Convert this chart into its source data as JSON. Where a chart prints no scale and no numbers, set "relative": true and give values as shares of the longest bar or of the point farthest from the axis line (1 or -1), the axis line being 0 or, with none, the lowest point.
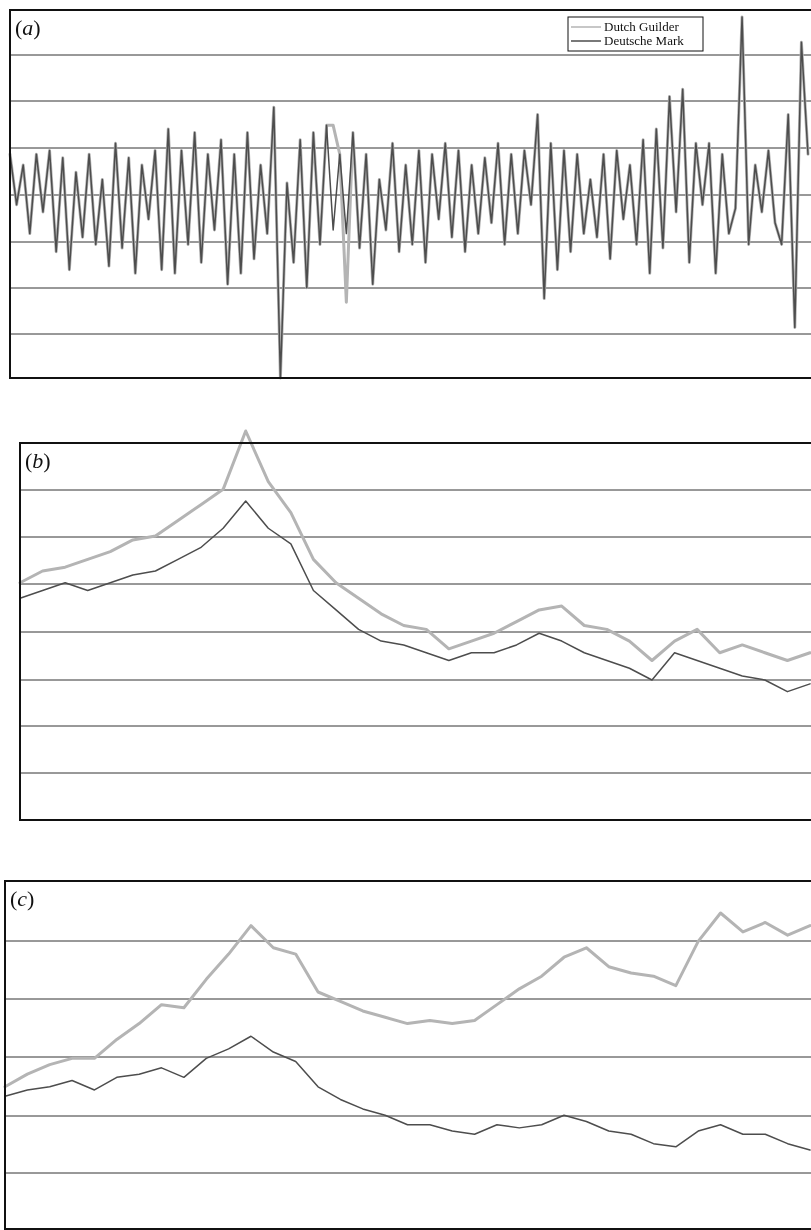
{
  "chart_data": [
    {
      "type": "line",
      "title": "(a)",
      "relative": true,
      "grid": true,
      "legend": "top right",
      "categories": [
        null,
        null,
        null,
        null,
        null,
        null,
        null,
        null,
        null,
        null,
        null,
        null,
        null,
        null,
        null,
        null,
        null,
        null,
        null,
        null,
        null,
        null,
        null,
        null,
        null,
        null,
        null,
        null,
        null,
        null,
        null,
        null,
        null,
        null,
        null,
        null,
        null,
        null,
        null,
        null,
        null,
        null,
        null,
        null,
        null,
        null,
        null,
        null,
        null,
        null,
        null,
        null,
        null,
        null,
        null,
        null,
        null,
        null,
        null,
        null,
        null,
        null,
        null,
        null,
        null,
        null,
        null,
        null,
        null,
        null,
        null,
        null,
        null,
        null,
        null,
        null,
        null,
        null,
        null,
        null,
        null,
        null,
        null,
        null,
        null,
        null,
        null,
        null,
        null,
        null,
        null,
        null,
        null,
        null,
        null,
        null,
        null,
        null,
        null,
        null,
        null,
        null,
        null,
        null,
        null,
        null,
        null,
        null,
        null,
        null,
        null,
        null,
        null,
        null,
        null,
        null,
        null,
        null,
        null,
        null,
        null,
        null
      ],
      "series": [
        {
          "name": "Dutch Guilder",
          "color": "#b4b4b4",
          "values": [
            0.62,
            0.48,
            0.59,
            0.4,
            0.62,
            0.46,
            0.63,
            0.35,
            0.61,
            0.3,
            0.57,
            0.39,
            0.62,
            0.37,
            0.55,
            0.31,
            0.65,
            0.36,
            0.61,
            0.29,
            0.59,
            0.44,
            0.63,
            0.3,
            0.69,
            0.29,
            0.63,
            0.37,
            0.68,
            0.32,
            0.62,
            0.41,
            0.66,
            0.26,
            0.62,
            0.29,
            0.68,
            0.33,
            0.59,
            0.4,
            0.75,
            0,
            0.54,
            0.32,
            0.66,
            0.25,
            0.68,
            0.37,
            0.7,
            0.7,
            0.62,
            0.21,
            0.68,
            0.36,
            0.62,
            0.26,
            0.55,
            0.41,
            0.65,
            0.35,
            0.59,
            0.37,
            0.63,
            0.32,
            0.62,
            0.44,
            0.65,
            0.39,
            0.63,
            0.35,
            0.59,
            0.4,
            0.61,
            0.43,
            0.65,
            0.37,
            0.62,
            0.4,
            0.63,
            0.48,
            0.73,
            0.22,
            0.65,
            0.3,
            0.63,
            0.35,
            0.62,
            0.4,
            0.55,
            0.39,
            0.62,
            0.33,
            0.63,
            0.44,
            0.59,
            0.37,
            0.66,
            0.29,
            0.69,
            0.36,
            0.78,
            0.46,
            0.8,
            0.32,
            0.65,
            0.48,
            0.65,
            0.29,
            0.62,
            0.4,
            0.47,
            1,
            0.37,
            0.59,
            0.46,
            0.63,
            0.43,
            0.37,
            0.73,
            0.14,
            0.93,
            0.62
          ]
        },
        {
          "name": "Deutsche Mark",
          "color": "#4d4d4d",
          "values": [
            0.62,
            0.48,
            0.59,
            0.4,
            0.62,
            0.46,
            0.63,
            0.35,
            0.61,
            0.3,
            0.57,
            0.39,
            0.62,
            0.37,
            0.55,
            0.31,
            0.65,
            0.36,
            0.61,
            0.29,
            0.59,
            0.44,
            0.63,
            0.3,
            0.69,
            0.29,
            0.63,
            0.37,
            0.68,
            0.32,
            0.62,
            0.41,
            0.66,
            0.26,
            0.62,
            0.29,
            0.68,
            0.33,
            0.59,
            0.4,
            0.75,
            0,
            0.54,
            0.32,
            0.66,
            0.25,
            0.68,
            0.37,
            0.7,
            0.41,
            0.62,
            0.4,
            0.68,
            0.36,
            0.62,
            0.26,
            0.55,
            0.41,
            0.65,
            0.35,
            0.59,
            0.37,
            0.63,
            0.32,
            0.62,
            0.44,
            0.65,
            0.39,
            0.63,
            0.35,
            0.59,
            0.4,
            0.61,
            0.43,
            0.65,
            0.37,
            0.62,
            0.4,
            0.63,
            0.48,
            0.73,
            0.22,
            0.65,
            0.3,
            0.63,
            0.35,
            0.62,
            0.4,
            0.55,
            0.39,
            0.62,
            0.33,
            0.63,
            0.44,
            0.59,
            0.37,
            0.66,
            0.29,
            0.69,
            0.36,
            0.78,
            0.46,
            0.8,
            0.32,
            0.65,
            0.48,
            0.65,
            0.29,
            0.62,
            0.4,
            0.47,
            1,
            0.37,
            0.59,
            0.46,
            0.63,
            0.43,
            0.37,
            0.73,
            0.14,
            0.93,
            0.62
          ]
        }
      ]
    },
    {
      "type": "line",
      "title": "(b)",
      "relative": true,
      "grid": true,
      "categories": [
        null,
        null,
        null,
        null,
        null,
        null,
        null,
        null,
        null,
        null,
        null,
        null,
        null,
        null,
        null,
        null,
        null,
        null,
        null,
        null,
        null,
        null,
        null,
        null,
        null,
        null,
        null,
        null,
        null,
        null,
        null,
        null,
        null,
        null,
        null,
        null
      ],
      "series": [
        {
          "color": "#b4b4b4",
          "values": [
            0.61,
            0.64,
            0.65,
            0.67,
            0.69,
            0.72,
            0.73,
            0.77,
            0.81,
            0.85,
            1,
            0.87,
            0.79,
            0.67,
            0.61,
            0.57,
            0.53,
            0.5,
            0.49,
            0.44,
            0.46,
            0.48,
            0.51,
            0.54,
            0.55,
            0.5,
            0.49,
            0.46,
            0.41,
            0.46,
            0.49,
            0.43,
            0.45,
            0.43,
            0.41,
            0.43
          ]
        },
        {
          "color": "#4d4d4d",
          "values": [
            0.57,
            0.59,
            0.61,
            0.59,
            0.61,
            0.63,
            0.64,
            0.67,
            0.7,
            0.75,
            0.82,
            0.75,
            0.71,
            0.59,
            0.54,
            0.49,
            0.46,
            0.45,
            0.43,
            0.41,
            0.43,
            0.43,
            0.45,
            0.48,
            0.46,
            0.43,
            0.41,
            0.39,
            0.36,
            0.43,
            0.41,
            0.39,
            0.37,
            0.36,
            0.33,
            0.35
          ]
        }
      ]
    },
    {
      "type": "line",
      "title": "(c)",
      "relative": true,
      "grid": true,
      "categories": [
        null,
        null,
        null,
        null,
        null,
        null,
        null,
        null,
        null,
        null,
        null,
        null,
        null,
        null,
        null,
        null,
        null,
        null,
        null,
        null,
        null,
        null,
        null,
        null,
        null,
        null,
        null,
        null,
        null,
        null,
        null,
        null,
        null,
        null,
        null,
        null,
        null
      ],
      "series": [
        {
          "color": "#b4b4b4",
          "values": [
            0.45,
            0.49,
            0.52,
            0.54,
            0.54,
            0.6,
            0.65,
            0.71,
            0.7,
            0.79,
            0.87,
            0.96,
            0.89,
            0.87,
            0.75,
            0.72,
            0.69,
            0.67,
            0.65,
            0.66,
            0.65,
            0.66,
            0.71,
            0.76,
            0.8,
            0.86,
            0.89,
            0.83,
            0.81,
            0.8,
            0.77,
            0.91,
            1,
            0.94,
            0.97,
            0.93,
            0.96
          ]
        },
        {
          "color": "#4d4d4d",
          "values": [
            0.42,
            0.44,
            0.45,
            0.47,
            0.44,
            0.48,
            0.49,
            0.51,
            0.48,
            0.54,
            0.57,
            0.61,
            0.56,
            0.53,
            0.45,
            0.41,
            0.38,
            0.36,
            0.33,
            0.33,
            0.31,
            0.3,
            0.33,
            0.32,
            0.33,
            0.36,
            0.34,
            0.31,
            0.3,
            0.27,
            0.26,
            0.31,
            0.33,
            0.3,
            0.3,
            0.27,
            0.25
          ]
        }
      ]
    }
  ]
}
